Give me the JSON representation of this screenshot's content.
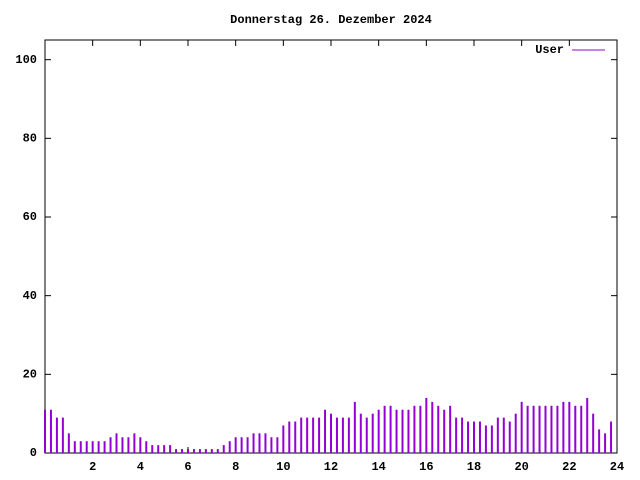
{
  "chart_data": {
    "type": "impulse",
    "title": "Donnerstag 26. Dezember 2024",
    "x": [
      0,
      0.25,
      0.5,
      0.75,
      1,
      1.25,
      1.5,
      1.75,
      2,
      2.25,
      2.5,
      2.75,
      3,
      3.25,
      3.5,
      3.75,
      4,
      4.25,
      4.5,
      4.75,
      5,
      5.25,
      5.5,
      5.75,
      6,
      6.25,
      6.5,
      6.75,
      7,
      7.25,
      7.5,
      7.75,
      8,
      8.25,
      8.5,
      8.75,
      9,
      9.25,
      9.5,
      9.75,
      10,
      10.25,
      10.5,
      10.75,
      11,
      11.25,
      11.5,
      11.75,
      12,
      12.25,
      12.5,
      12.75,
      13,
      13.25,
      13.5,
      13.75,
      14,
      14.25,
      14.5,
      14.75,
      15,
      15.25,
      15.5,
      15.75,
      16,
      16.25,
      16.5,
      16.75,
      17,
      17.25,
      17.5,
      17.75,
      18,
      18.25,
      18.5,
      18.75,
      19,
      19.25,
      19.5,
      19.75,
      20,
      20.25,
      20.5,
      20.75,
      21,
      21.25,
      21.5,
      21.75,
      22,
      22.25,
      22.5,
      22.75,
      23,
      23.25,
      23.5,
      23.75
    ],
    "series": [
      {
        "name": "User",
        "color": "#9400d3",
        "values": [
          11,
          11,
          9,
          9,
          5,
          3,
          3,
          3,
          3,
          3,
          3,
          4,
          5,
          4,
          4,
          5,
          4,
          3,
          2,
          2,
          2,
          2,
          1,
          1,
          1,
          1,
          1,
          1,
          1,
          1,
          2,
          3,
          4,
          4,
          4,
          5,
          5,
          5,
          4,
          4,
          7,
          8,
          8,
          9,
          9,
          9,
          9,
          11,
          10,
          9,
          9,
          9,
          13,
          10,
          9,
          10,
          11,
          12,
          12,
          11,
          11,
          11,
          12,
          12,
          14,
          13,
          12,
          11,
          12,
          9,
          9,
          8,
          8,
          8,
          7,
          7,
          9,
          9,
          8,
          10,
          13,
          12,
          12,
          12,
          12,
          12,
          12,
          13,
          13,
          12,
          12,
          14,
          10,
          6,
          5,
          8
        ]
      }
    ],
    "xlim": [
      0,
      24
    ],
    "xticks": [
      2,
      4,
      6,
      8,
      10,
      12,
      14,
      16,
      18,
      20,
      22,
      24
    ],
    "ylim": [
      0,
      105
    ],
    "yticks": [
      0,
      20,
      40,
      60,
      80,
      100
    ],
    "legend": "top-right"
  }
}
